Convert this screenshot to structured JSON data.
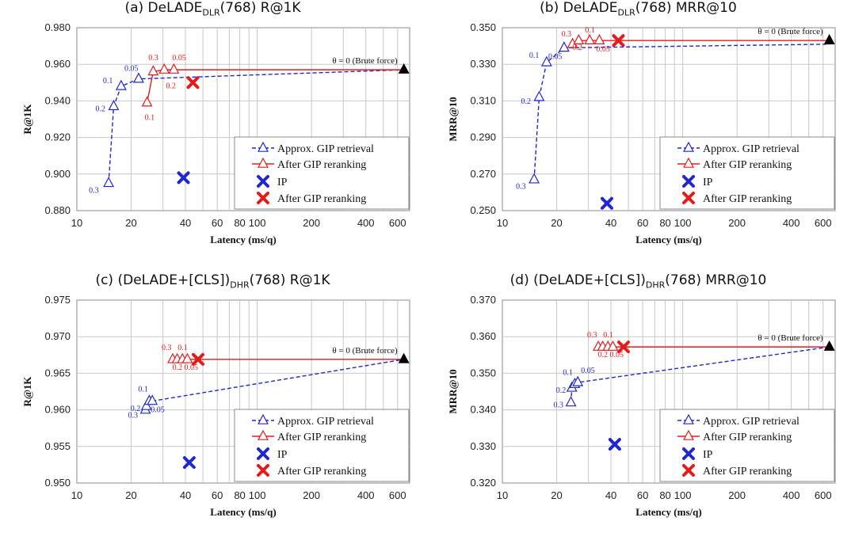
{
  "colors": {
    "blue": "#2026d0",
    "red": "#e41b1b",
    "black": "#000000",
    "grid": "#c8c8c8"
  },
  "legend": {
    "approx": "Approx. GIP retrieval",
    "rerank_line": "After GIP reranking",
    "ip": "IP",
    "rerank_point": "After GIP reranking"
  },
  "chart_data": [
    {
      "type": "scatter",
      "title": {
        "prefix": "(a) DeLADE",
        "sub": "DLR",
        "suffix": "(768) R@1K"
      },
      "xlabel": "Latency (ms/q)",
      "ylabel": "R@1K",
      "x_scale": "log",
      "xlim": [
        10,
        700
      ],
      "x_ticks": [
        10,
        20,
        40,
        60,
        80,
        100,
        200,
        400,
        600
      ],
      "ylim": [
        0.88,
        0.98
      ],
      "y_ticks": [
        "0.880",
        "0.900",
        "0.920",
        "0.940",
        "0.960",
        "0.980"
      ],
      "series": [
        {
          "name": "Approx. GIP retrieval",
          "x": [
            15,
            16,
            17.6,
            22,
            650
          ],
          "y": [
            0.895,
            0.937,
            0.948,
            0.952,
            0.957
          ],
          "labels": [
            "0.3",
            "0.2",
            "0.1",
            "0.05",
            ""
          ]
        },
        {
          "name": "After GIP reranking",
          "x": [
            24.5,
            26.5,
            30.5,
            34.5,
            650
          ],
          "y": [
            0.939,
            0.956,
            0.957,
            0.957,
            0.957
          ],
          "labels": [
            "0.1",
            "",
            "0.3",
            "0.05",
            ""
          ],
          "extra_labels": [
            {
              "t": "0.2",
              "x": 34.5,
              "y": 0.9565
            }
          ]
        },
        {
          "name": "IP",
          "x": [
            39
          ],
          "y": [
            0.898
          ]
        },
        {
          "name": "After GIP reranking",
          "x": [
            44
          ],
          "y": [
            0.95
          ]
        }
      ],
      "brute_force": {
        "x": 650,
        "y": 0.957,
        "label": "θ = 0 (Brute force)"
      }
    },
    {
      "type": "scatter",
      "title": {
        "prefix": "(b) DeLADE",
        "sub": "DLR",
        "suffix": "(768) MRR@10"
      },
      "xlabel": "Latency (ms/q)",
      "ylabel": "MRR@10",
      "x_scale": "log",
      "xlim": [
        10,
        700
      ],
      "x_ticks": [
        10,
        20,
        40,
        60,
        80,
        100,
        200,
        400,
        600
      ],
      "ylim": [
        0.25,
        0.35
      ],
      "y_ticks": [
        "0.250",
        "0.270",
        "0.290",
        "0.310",
        "0.330",
        "0.350"
      ],
      "series": [
        {
          "name": "Approx. GIP retrieval",
          "x": [
            15,
            16,
            17.6,
            22,
            650
          ],
          "y": [
            0.267,
            0.312,
            0.331,
            0.339,
            0.341
          ],
          "labels": [
            "0.3",
            "0.2",
            "0.1",
            "0.05",
            ""
          ]
        },
        {
          "name": "After GIP reranking",
          "x": [
            24.5,
            26.5,
            30.5,
            34.5,
            650
          ],
          "y": [
            0.341,
            0.343,
            0.343,
            0.343,
            0.343
          ],
          "labels": [
            "0.3",
            "0.2",
            "0.1",
            "0.05",
            ""
          ]
        },
        {
          "name": "IP",
          "x": [
            38
          ],
          "y": [
            0.254
          ]
        },
        {
          "name": "After GIP reranking",
          "x": [
            44
          ],
          "y": [
            0.343
          ]
        }
      ],
      "brute_force": {
        "x": 650,
        "y": 0.343,
        "label": "θ = 0 (Brute force)"
      }
    },
    {
      "type": "scatter",
      "title": {
        "prefix": "(c) (DeLADE+[CLS])",
        "sub": "DHR",
        "suffix": "(768) R@1K"
      },
      "xlabel": "Latency (ms/q)",
      "ylabel": "R@1K",
      "x_scale": "log",
      "xlim": [
        10,
        700
      ],
      "x_ticks": [
        10,
        20,
        40,
        60,
        80,
        100,
        200,
        400,
        600
      ],
      "ylim": [
        0.95,
        0.975
      ],
      "y_ticks": [
        "0.950",
        "0.955",
        "0.960",
        "0.965",
        "0.970",
        "0.975"
      ],
      "series": [
        {
          "name": "Approx. GIP retrieval",
          "x": [
            24,
            24.3,
            25.2,
            26.2,
            650
          ],
          "y": [
            0.96,
            0.9605,
            0.9612,
            0.9612,
            0.9669
          ],
          "labels": [
            "0.3",
            "0.2",
            "0.1",
            "0.05",
            ""
          ]
        },
        {
          "name": "After GIP reranking",
          "x": [
            34,
            36,
            38.5,
            41,
            650
          ],
          "y": [
            0.9669,
            0.9669,
            0.9669,
            0.9669,
            0.9669
          ],
          "labels": [
            "0.3",
            "0.2",
            "0.1",
            "0.05",
            ""
          ]
        },
        {
          "name": "IP",
          "x": [
            42
          ],
          "y": [
            0.9528
          ]
        },
        {
          "name": "After GIP reranking",
          "x": [
            47
          ],
          "y": [
            0.9669
          ]
        }
      ],
      "brute_force": {
        "x": 650,
        "y": 0.9669,
        "label": "θ = 0 (Brute force)"
      }
    },
    {
      "type": "scatter",
      "title": {
        "prefix": "(d) (DeLADE+[CLS])",
        "sub": "DHR",
        "suffix": "(768) MRR@10"
      },
      "xlabel": "Latency (ms/q)",
      "ylabel": "MRR@10",
      "x_scale": "log",
      "xlim": [
        10,
        700
      ],
      "x_ticks": [
        10,
        20,
        40,
        60,
        80,
        100,
        200,
        400,
        600
      ],
      "ylim": [
        0.32,
        0.37
      ],
      "y_ticks": [
        "0.320",
        "0.330",
        "0.340",
        "0.350",
        "0.360",
        "0.370"
      ],
      "series": [
        {
          "name": "Approx. GIP retrieval",
          "x": [
            24,
            24.3,
            25.2,
            26.2,
            650
          ],
          "y": [
            0.342,
            0.346,
            0.347,
            0.3475,
            0.3572
          ],
          "labels": [
            "0.3",
            "0.2",
            "0.1",
            "0.05",
            ""
          ]
        },
        {
          "name": "After GIP reranking",
          "x": [
            34,
            36,
            38.5,
            41,
            650
          ],
          "y": [
            0.3572,
            0.3572,
            0.3572,
            0.3572,
            0.3572
          ],
          "labels": [
            "0.3",
            "0.2",
            "0.1",
            "0.05",
            ""
          ]
        },
        {
          "name": "IP",
          "x": [
            42
          ],
          "y": [
            0.3306
          ]
        },
        {
          "name": "After GIP reranking",
          "x": [
            47
          ],
          "y": [
            0.3572
          ]
        }
      ],
      "brute_force": {
        "x": 650,
        "y": 0.3572,
        "label": "θ = 0 (Brute force)"
      }
    }
  ]
}
